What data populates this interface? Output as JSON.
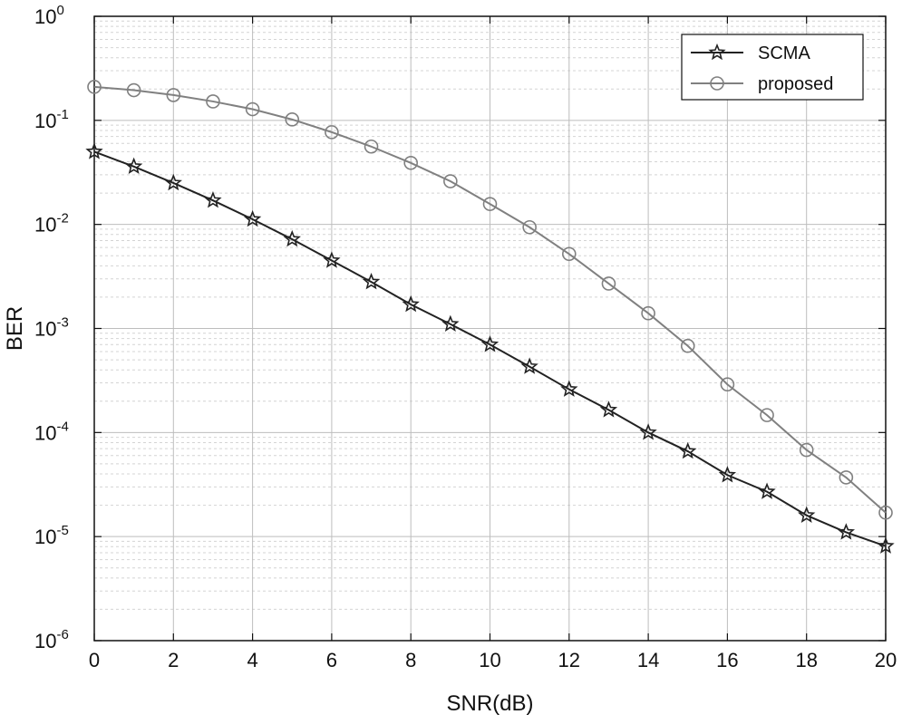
{
  "chart_data": {
    "type": "line",
    "title": "",
    "xlabel": "SNR(dB)",
    "ylabel": "BER",
    "xlim": [
      0,
      20
    ],
    "ylim": [
      1e-06,
      1
    ],
    "yscale": "log",
    "grid": true,
    "minor_grid": true,
    "legend_position": "top-right",
    "x": [
      0,
      1,
      2,
      3,
      4,
      5,
      6,
      7,
      8,
      9,
      10,
      11,
      12,
      13,
      14,
      15,
      16,
      17,
      18,
      19,
      20
    ],
    "x_ticks": [
      "0",
      "2",
      "4",
      "6",
      "8",
      "10",
      "12",
      "14",
      "16",
      "18",
      "20"
    ],
    "y_tick_labels": [
      {
        "base": "10",
        "exp": "0"
      },
      {
        "base": "10",
        "exp": "-1"
      },
      {
        "base": "10",
        "exp": "-2"
      },
      {
        "base": "10",
        "exp": "-3"
      },
      {
        "base": "10",
        "exp": "-4"
      },
      {
        "base": "10",
        "exp": "-5"
      },
      {
        "base": "10",
        "exp": "-6"
      }
    ],
    "series": [
      {
        "name": "SCMA",
        "color": "#222222",
        "marker": "star",
        "values": [
          0.05,
          0.036,
          0.025,
          0.017,
          0.0112,
          0.0072,
          0.0045,
          0.0028,
          0.0017,
          0.0011,
          0.0007,
          0.00043,
          0.00026,
          0.000165,
          0.0001,
          6.6e-05,
          3.9e-05,
          2.7e-05,
          1.6e-05,
          1.1e-05,
          8.1e-06
        ]
      },
      {
        "name": "proposed",
        "color": "#808080",
        "marker": "circle",
        "values": [
          0.21,
          0.195,
          0.175,
          0.152,
          0.128,
          0.102,
          0.077,
          0.056,
          0.039,
          0.026,
          0.0157,
          0.0094,
          0.0052,
          0.0027,
          0.0014,
          0.00068,
          0.00029,
          0.000147,
          6.8e-05,
          3.7e-05,
          1.7e-05
        ]
      }
    ]
  }
}
